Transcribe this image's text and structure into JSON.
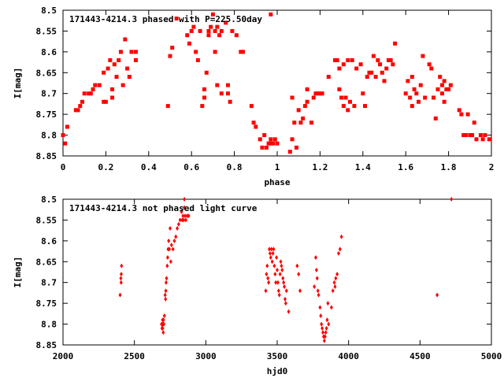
{
  "colors": {
    "points": "#ff0000",
    "axes": "#000000",
    "background": "#ffffff"
  },
  "chart_data": [
    {
      "type": "scatter",
      "title": "171443-4214.3 phased with P=225.50day",
      "xlabel": "phase",
      "ylabel": "I[mag]",
      "xlim": [
        0,
        2
      ],
      "ylim": [
        8.5,
        8.85
      ],
      "y_inverted": true,
      "grid": false,
      "marker": "square",
      "xticks": [
        "0",
        "0.2",
        "0.4",
        "0.6",
        "0.8",
        "1",
        "1.2",
        "1.4",
        "1.6",
        "1.8",
        "2"
      ],
      "yticks": [
        "8.5",
        "8.55",
        "8.6",
        "8.65",
        "8.7",
        "8.75",
        "8.8",
        "8.85"
      ],
      "points": [
        [
          0.0,
          8.8
        ],
        [
          0.01,
          8.82
        ],
        [
          0.02,
          8.78
        ],
        [
          0.06,
          8.74
        ],
        [
          0.07,
          8.74
        ],
        [
          0.08,
          8.73
        ],
        [
          0.09,
          8.72
        ],
        [
          0.1,
          8.7
        ],
        [
          0.12,
          8.7
        ],
        [
          0.13,
          8.7
        ],
        [
          0.14,
          8.69
        ],
        [
          0.15,
          8.68
        ],
        [
          0.17,
          8.68
        ],
        [
          0.19,
          8.65
        ],
        [
          0.19,
          8.72
        ],
        [
          0.2,
          8.72
        ],
        [
          0.21,
          8.64
        ],
        [
          0.22,
          8.62
        ],
        [
          0.23,
          8.69
        ],
        [
          0.23,
          8.71
        ],
        [
          0.24,
          8.63
        ],
        [
          0.25,
          8.66
        ],
        [
          0.26,
          8.62
        ],
        [
          0.27,
          8.6
        ],
        [
          0.28,
          8.68
        ],
        [
          0.29,
          8.57
        ],
        [
          0.3,
          8.64
        ],
        [
          0.31,
          8.66
        ],
        [
          0.32,
          8.6
        ],
        [
          0.34,
          8.62
        ],
        [
          0.34,
          8.6
        ],
        [
          0.49,
          8.73
        ],
        [
          0.5,
          8.61
        ],
        [
          0.51,
          8.59
        ],
        [
          0.53,
          8.52
        ],
        [
          0.58,
          8.56
        ],
        [
          0.59,
          8.58
        ],
        [
          0.6,
          8.55
        ],
        [
          0.61,
          8.54
        ],
        [
          0.62,
          8.6
        ],
        [
          0.63,
          8.62
        ],
        [
          0.64,
          8.55
        ],
        [
          0.65,
          8.73
        ],
        [
          0.66,
          8.69
        ],
        [
          0.66,
          8.71
        ],
        [
          0.67,
          8.65
        ],
        [
          0.68,
          8.56
        ],
        [
          0.68,
          8.55
        ],
        [
          0.69,
          8.54
        ],
        [
          0.7,
          8.51
        ],
        [
          0.71,
          8.55
        ],
        [
          0.71,
          8.6
        ],
        [
          0.72,
          8.54
        ],
        [
          0.72,
          8.68
        ],
        [
          0.73,
          8.56
        ],
        [
          0.74,
          8.7
        ],
        [
          0.74,
          8.55
        ],
        [
          0.76,
          8.53
        ],
        [
          0.77,
          8.7
        ],
        [
          0.77,
          8.68
        ],
        [
          0.78,
          8.72
        ],
        [
          0.79,
          8.55
        ],
        [
          0.81,
          8.56
        ],
        [
          0.83,
          8.6
        ],
        [
          0.84,
          8.6
        ],
        [
          0.88,
          8.73
        ],
        [
          0.89,
          8.77
        ],
        [
          0.9,
          8.78
        ],
        [
          0.92,
          8.81
        ],
        [
          0.93,
          8.83
        ],
        [
          0.94,
          8.8
        ],
        [
          0.95,
          8.83
        ],
        [
          0.96,
          8.82
        ],
        [
          0.97,
          8.82
        ],
        [
          0.97,
          8.81
        ],
        [
          0.98,
          8.82
        ],
        [
          0.99,
          8.81
        ],
        [
          1.0,
          8.82
        ],
        [
          0.97,
          8.51
        ],
        [
          1.06,
          8.84
        ],
        [
          1.07,
          8.81
        ],
        [
          1.08,
          8.77
        ],
        [
          1.07,
          8.71
        ],
        [
          1.09,
          8.83
        ],
        [
          1.1,
          8.74
        ],
        [
          1.11,
          8.77
        ],
        [
          1.12,
          8.76
        ],
        [
          1.13,
          8.73
        ],
        [
          1.14,
          8.69
        ],
        [
          1.14,
          8.72
        ],
        [
          1.16,
          8.77
        ],
        [
          1.17,
          8.71
        ],
        [
          1.18,
          8.7
        ],
        [
          1.19,
          8.7
        ],
        [
          1.2,
          8.7
        ],
        [
          1.21,
          8.7
        ],
        [
          1.24,
          8.66
        ],
        [
          1.27,
          8.62
        ],
        [
          1.28,
          8.62
        ],
        [
          1.29,
          8.64
        ],
        [
          1.29,
          8.69
        ],
        [
          1.3,
          8.71
        ],
        [
          1.31,
          8.73
        ],
        [
          1.31,
          8.63
        ],
        [
          1.32,
          8.71
        ],
        [
          1.33,
          8.74
        ],
        [
          1.33,
          8.62
        ],
        [
          1.34,
          8.72
        ],
        [
          1.35,
          8.62
        ],
        [
          1.36,
          8.73
        ],
        [
          1.37,
          8.64
        ],
        [
          1.39,
          8.63
        ],
        [
          1.4,
          8.7
        ],
        [
          1.41,
          8.73
        ],
        [
          1.42,
          8.66
        ],
        [
          1.43,
          8.65
        ],
        [
          1.44,
          8.65
        ],
        [
          1.45,
          8.61
        ],
        [
          1.46,
          8.66
        ],
        [
          1.47,
          8.62
        ],
        [
          1.48,
          8.63
        ],
        [
          1.49,
          8.65
        ],
        [
          1.5,
          8.67
        ],
        [
          1.51,
          8.64
        ],
        [
          1.52,
          8.62
        ],
        [
          1.53,
          8.62
        ],
        [
          1.54,
          8.63
        ],
        [
          1.55,
          8.58
        ],
        [
          1.6,
          8.7
        ],
        [
          1.61,
          8.67
        ],
        [
          1.62,
          8.71
        ],
        [
          1.63,
          8.66
        ],
        [
          1.63,
          8.73
        ],
        [
          1.64,
          8.69
        ],
        [
          1.65,
          8.7
        ],
        [
          1.66,
          8.72
        ],
        [
          1.67,
          8.68
        ],
        [
          1.68,
          8.61
        ],
        [
          1.69,
          8.71
        ],
        [
          1.71,
          8.63
        ],
        [
          1.72,
          8.64
        ],
        [
          1.73,
          8.71
        ],
        [
          1.74,
          8.76
        ],
        [
          1.75,
          8.69
        ],
        [
          1.76,
          8.66
        ],
        [
          1.77,
          8.68
        ],
        [
          1.77,
          8.7
        ],
        [
          1.78,
          8.67
        ],
        [
          1.78,
          8.72
        ],
        [
          1.79,
          8.69
        ],
        [
          1.8,
          8.69
        ],
        [
          1.81,
          8.68
        ],
        [
          1.85,
          8.74
        ],
        [
          1.86,
          8.75
        ],
        [
          1.87,
          8.8
        ],
        [
          1.88,
          8.8
        ],
        [
          1.89,
          8.75
        ],
        [
          1.9,
          8.8
        ],
        [
          1.91,
          8.8
        ],
        [
          1.92,
          8.77
        ],
        [
          1.93,
          8.81
        ],
        [
          1.95,
          8.8
        ],
        [
          1.96,
          8.81
        ],
        [
          1.97,
          8.8
        ],
        [
          1.99,
          8.81
        ]
      ]
    },
    {
      "type": "scatter",
      "title": "171443-4214.3 not phased light curve",
      "xlabel": "hjd0",
      "ylabel": "I[mag]",
      "xlim": [
        2000,
        5000
      ],
      "ylim": [
        8.5,
        8.85
      ],
      "y_inverted": true,
      "grid": false,
      "marker": "diamond",
      "xticks": [
        "2000",
        "2500",
        "3000",
        "3500",
        "4000",
        "4500",
        "5000"
      ],
      "yticks": [
        "8.5",
        "8.55",
        "8.6",
        "8.65",
        "8.7",
        "8.75",
        "8.8",
        "8.85"
      ],
      "points": [
        [
          2400,
          8.73
        ],
        [
          2405,
          8.69
        ],
        [
          2407,
          8.7
        ],
        [
          2408,
          8.68
        ],
        [
          2410,
          8.66
        ],
        [
          2690,
          8.8
        ],
        [
          2693,
          8.81
        ],
        [
          2695,
          8.8
        ],
        [
          2697,
          8.79
        ],
        [
          2698,
          8.81
        ],
        [
          2700,
          8.8
        ],
        [
          2702,
          8.82
        ],
        [
          2704,
          8.79
        ],
        [
          2706,
          8.8
        ],
        [
          2710,
          8.78
        ],
        [
          2715,
          8.73
        ],
        [
          2718,
          8.74
        ],
        [
          2720,
          8.72
        ],
        [
          2722,
          8.7
        ],
        [
          2725,
          8.69
        ],
        [
          2730,
          8.66
        ],
        [
          2733,
          8.64
        ],
        [
          2736,
          8.62
        ],
        [
          2740,
          8.6
        ],
        [
          2745,
          8.62
        ],
        [
          2750,
          8.57
        ],
        [
          2755,
          8.65
        ],
        [
          2760,
          8.61
        ],
        [
          2770,
          8.62
        ],
        [
          2780,
          8.6
        ],
        [
          2790,
          8.59
        ],
        [
          2800,
          8.57
        ],
        [
          2810,
          8.56
        ],
        [
          2820,
          8.55
        ],
        [
          2830,
          8.53
        ],
        [
          2835,
          8.55
        ],
        [
          2840,
          8.54
        ],
        [
          2845,
          8.55
        ],
        [
          2850,
          8.52
        ],
        [
          2855,
          8.54
        ],
        [
          2860,
          8.55
        ],
        [
          2870,
          8.54
        ],
        [
          2880,
          8.54
        ],
        [
          2850,
          8.5
        ],
        [
          3420,
          8.72
        ],
        [
          3425,
          8.68
        ],
        [
          3430,
          8.66
        ],
        [
          3435,
          8.69
        ],
        [
          3440,
          8.7
        ],
        [
          3445,
          8.62
        ],
        [
          3450,
          8.63
        ],
        [
          3455,
          8.64
        ],
        [
          3460,
          8.62
        ],
        [
          3465,
          8.65
        ],
        [
          3470,
          8.63
        ],
        [
          3475,
          8.62
        ],
        [
          3480,
          8.66
        ],
        [
          3485,
          8.68
        ],
        [
          3490,
          8.7
        ],
        [
          3495,
          8.64
        ],
        [
          3500,
          8.67
        ],
        [
          3505,
          8.7
        ],
        [
          3510,
          8.72
        ],
        [
          3515,
          8.73
        ],
        [
          3520,
          8.68
        ],
        [
          3525,
          8.65
        ],
        [
          3530,
          8.66
        ],
        [
          3535,
          8.67
        ],
        [
          3540,
          8.69
        ],
        [
          3545,
          8.7
        ],
        [
          3550,
          8.71
        ],
        [
          3555,
          8.74
        ],
        [
          3560,
          8.75
        ],
        [
          3565,
          8.72
        ],
        [
          3580,
          8.77
        ],
        [
          3640,
          8.66
        ],
        [
          3650,
          8.68
        ],
        [
          3660,
          8.72
        ],
        [
          3760,
          8.71
        ],
        [
          3770,
          8.64
        ],
        [
          3775,
          8.67
        ],
        [
          3780,
          8.69
        ],
        [
          3785,
          8.72
        ],
        [
          3790,
          8.73
        ],
        [
          3800,
          8.76
        ],
        [
          3805,
          8.78
        ],
        [
          3810,
          8.8
        ],
        [
          3815,
          8.81
        ],
        [
          3820,
          8.82
        ],
        [
          3825,
          8.83
        ],
        [
          3830,
          8.84
        ],
        [
          3835,
          8.83
        ],
        [
          3840,
          8.82
        ],
        [
          3845,
          8.81
        ],
        [
          3850,
          8.79
        ],
        [
          3855,
          8.75
        ],
        [
          3860,
          8.8
        ],
        [
          3880,
          8.76
        ],
        [
          3890,
          8.72
        ],
        [
          3900,
          8.7
        ],
        [
          3905,
          8.71
        ],
        [
          3910,
          8.69
        ],
        [
          3920,
          8.68
        ],
        [
          3930,
          8.63
        ],
        [
          3940,
          8.62
        ],
        [
          3950,
          8.59
        ],
        [
          4620,
          8.73
        ],
        [
          4720,
          8.5
        ]
      ]
    }
  ]
}
